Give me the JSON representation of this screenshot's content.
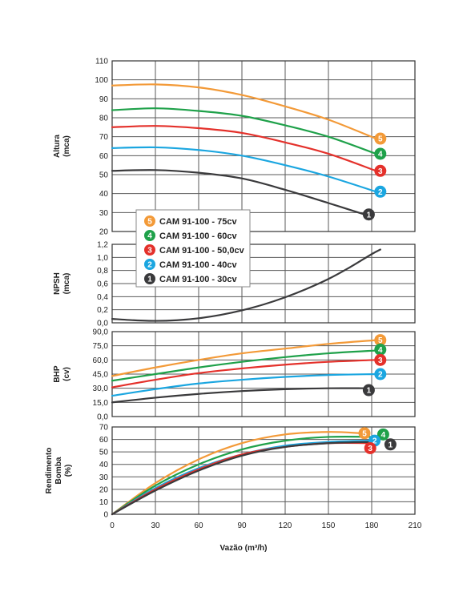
{
  "colors": {
    "s1": "#3a3a3c",
    "s2": "#1ba6e0",
    "s3": "#e4312b",
    "s4": "#1fa14a",
    "s5": "#f39a38",
    "grid": "#5a5a5a",
    "frame": "#333333"
  },
  "legend": [
    {
      "id": "5",
      "label": "CAM 91-100 - 75cv",
      "color_key": "s5"
    },
    {
      "id": "4",
      "label": "CAM 91-100 - 60cv",
      "color_key": "s4"
    },
    {
      "id": "3",
      "label": "CAM 91-100 - 50,0cv",
      "color_key": "s3"
    },
    {
      "id": "2",
      "label": "CAM 91-100 - 40cv",
      "color_key": "s2"
    },
    {
      "id": "1",
      "label": "CAM 91-100 - 30cv",
      "color_key": "s1"
    }
  ],
  "chart_data": [
    {
      "type": "line",
      "ylabel": "Altura (mca)",
      "xlim": [
        0,
        210
      ],
      "ylim": [
        20,
        110
      ],
      "yticks": [
        "20",
        "30",
        "40",
        "50",
        "60",
        "70",
        "80",
        "90",
        "100",
        "110"
      ],
      "grid": true,
      "series": [
        {
          "id": "5",
          "color_key": "s5",
          "x": [
            0,
            30,
            60,
            90,
            120,
            150,
            183
          ],
          "y": [
            97,
            97.6,
            96,
            92,
            86,
            79,
            69
          ]
        },
        {
          "id": "4",
          "color_key": "s4",
          "x": [
            0,
            30,
            60,
            90,
            120,
            150,
            183
          ],
          "y": [
            84,
            85,
            83.6,
            81,
            76,
            70,
            61
          ]
        },
        {
          "id": "3",
          "color_key": "s3",
          "x": [
            0,
            30,
            60,
            90,
            120,
            150,
            183
          ],
          "y": [
            75,
            75.7,
            74.5,
            72,
            67,
            61,
            52
          ]
        },
        {
          "id": "2",
          "color_key": "s2",
          "x": [
            0,
            30,
            60,
            90,
            120,
            150,
            183
          ],
          "y": [
            64,
            64.4,
            63,
            60,
            55,
            49,
            41
          ]
        },
        {
          "id": "1",
          "color_key": "s1",
          "x": [
            0,
            30,
            60,
            90,
            120,
            150,
            175
          ],
          "y": [
            52,
            52.4,
            51,
            48,
            42,
            35,
            29
          ]
        }
      ],
      "badges": [
        {
          "id": "5",
          "x": 186,
          "y": 69
        },
        {
          "id": "4",
          "x": 186,
          "y": 61
        },
        {
          "id": "3",
          "x": 186,
          "y": 52
        },
        {
          "id": "2",
          "x": 186,
          "y": 41
        },
        {
          "id": "1",
          "x": 178,
          "y": 29
        }
      ]
    },
    {
      "type": "line",
      "ylabel": "NPSH (mca)",
      "xlim": [
        0,
        210
      ],
      "ylim": [
        0,
        1.2
      ],
      "yticks": [
        "0,0",
        "0,2",
        "0,4",
        "0,6",
        "0,8",
        "1,0",
        "1,2"
      ],
      "grid": true,
      "series": [
        {
          "id": "npsh",
          "color_key": "s1",
          "x": [
            0,
            15,
            30,
            45,
            60,
            75,
            90,
            105,
            120,
            135,
            150,
            165,
            180,
            186
          ],
          "y": [
            0.06,
            0.04,
            0.03,
            0.04,
            0.07,
            0.12,
            0.19,
            0.28,
            0.39,
            0.52,
            0.67,
            0.85,
            1.05,
            1.12
          ]
        }
      ]
    },
    {
      "type": "line",
      "ylabel": "BHP (cv)",
      "xlim": [
        0,
        210
      ],
      "ylim": [
        0,
        90
      ],
      "yticks": [
        "0,0",
        "15,0",
        "30,0",
        "45,0",
        "60,0",
        "75,0",
        "90,0"
      ],
      "grid": true,
      "series": [
        {
          "id": "5",
          "color_key": "s5",
          "x": [
            0,
            30,
            60,
            90,
            120,
            150,
            183
          ],
          "y": [
            43,
            52,
            60,
            67,
            72,
            77,
            81
          ]
        },
        {
          "id": "4",
          "color_key": "s4",
          "x": [
            0,
            30,
            60,
            90,
            120,
            150,
            183
          ],
          "y": [
            38,
            45,
            52,
            58,
            63,
            67,
            70
          ]
        },
        {
          "id": "3",
          "color_key": "s3",
          "x": [
            0,
            30,
            60,
            90,
            120,
            150,
            183
          ],
          "y": [
            31,
            39,
            46,
            51,
            55,
            58,
            60
          ]
        },
        {
          "id": "2",
          "color_key": "s2",
          "x": [
            0,
            30,
            60,
            90,
            120,
            150,
            183
          ],
          "y": [
            22,
            29,
            35,
            39,
            42,
            44,
            45
          ]
        },
        {
          "id": "1",
          "color_key": "s1",
          "x": [
            0,
            30,
            60,
            90,
            120,
            150,
            175
          ],
          "y": [
            15,
            20,
            24,
            27,
            29,
            30,
            30
          ]
        }
      ],
      "badges": [
        {
          "id": "5",
          "x": 186,
          "y": 81
        },
        {
          "id": "4",
          "x": 186,
          "y": 71
        },
        {
          "id": "3",
          "x": 186,
          "y": 60
        },
        {
          "id": "2",
          "x": 186,
          "y": 45
        },
        {
          "id": "1",
          "x": 178,
          "y": 28
        }
      ]
    },
    {
      "type": "line",
      "ylabel": "Rendimento Bomba (%)",
      "xlim": [
        0,
        210
      ],
      "ylim": [
        0,
        70
      ],
      "yticks": [
        "0",
        "10",
        "20",
        "30",
        "40",
        "50",
        "60",
        "70"
      ],
      "xticks": [
        "0",
        "30",
        "60",
        "90",
        "120",
        "150",
        "180",
        "210"
      ],
      "xlabel": "Vazão (m³/h)",
      "grid": true,
      "series": [
        {
          "id": "5",
          "color_key": "s5",
          "x": [
            0,
            30,
            60,
            90,
            120,
            150,
            172
          ],
          "y": [
            0,
            25,
            44,
            57,
            64,
            66,
            65
          ]
        },
        {
          "id": "4",
          "color_key": "s4",
          "x": [
            0,
            30,
            60,
            90,
            120,
            150,
            183
          ],
          "y": [
            0,
            23,
            40,
            52,
            59,
            62,
            62
          ]
        },
        {
          "id": "2",
          "color_key": "s2",
          "x": [
            0,
            30,
            60,
            90,
            120,
            150,
            180
          ],
          "y": [
            0,
            21,
            37,
            48,
            55,
            58,
            59
          ]
        },
        {
          "id": "3",
          "color_key": "s3",
          "x": [
            0,
            30,
            60,
            90,
            120,
            150,
            180
          ],
          "y": [
            0,
            20,
            36,
            48,
            54,
            57,
            57
          ]
        },
        {
          "id": "1",
          "color_key": "s1",
          "x": [
            0,
            30,
            60,
            90,
            120,
            150,
            182
          ],
          "y": [
            0,
            19,
            35,
            47,
            54,
            57,
            58
          ]
        }
      ],
      "badges": [
        {
          "id": "5",
          "x": 175,
          "y": 65
        },
        {
          "id": "4",
          "x": 188,
          "y": 64
        },
        {
          "id": "2",
          "x": 182,
          "y": 59
        },
        {
          "id": "1",
          "x": 193,
          "y": 56
        },
        {
          "id": "3",
          "x": 179,
          "y": 53
        }
      ]
    }
  ]
}
